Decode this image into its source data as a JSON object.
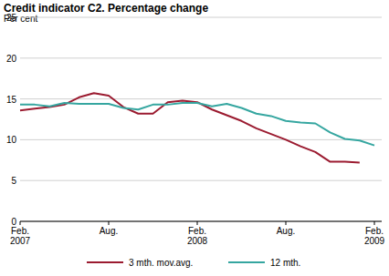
{
  "chart_data": {
    "type": "line",
    "title": "Credit indicator C2. Percentage change",
    "y_label": "Per cent",
    "categories": [
      "Feb. 2007",
      null,
      null,
      null,
      null,
      null,
      "Aug.",
      null,
      null,
      null,
      null,
      null,
      "Feb. 2008",
      null,
      null,
      null,
      null,
      null,
      "Aug.",
      null,
      null,
      null,
      null,
      null,
      "Feb. 2009"
    ],
    "series": [
      {
        "name": "3 mth. mov.avg.",
        "color": "#9b1b30",
        "values": [
          13.6,
          13.8,
          14.0,
          14.3,
          15.2,
          15.7,
          15.4,
          14.0,
          13.2,
          13.2,
          14.6,
          14.8,
          14.6,
          13.7,
          13.0,
          12.3,
          11.4,
          10.7,
          10.0,
          9.2,
          8.5,
          7.3,
          7.3,
          7.2,
          null
        ]
      },
      {
        "name": "12 mth.",
        "color": "#35a6a0",
        "values": [
          14.3,
          14.3,
          14.1,
          14.5,
          14.4,
          14.4,
          14.4,
          13.9,
          13.7,
          14.3,
          14.3,
          14.5,
          14.5,
          14.1,
          14.4,
          13.9,
          13.2,
          12.9,
          12.3,
          12.1,
          12.0,
          10.9,
          10.1,
          9.9,
          9.3
        ]
      }
    ],
    "ylim": [
      0,
      25
    ],
    "yticks": [
      0,
      5,
      10,
      15,
      20,
      25
    ],
    "grid": true,
    "legend": "bottom"
  }
}
